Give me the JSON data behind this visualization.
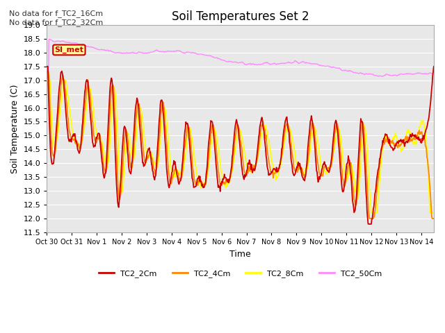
{
  "title": "Soil Temperatures Set 2",
  "xlabel": "Time",
  "ylabel": "Soil Temperature (C)",
  "ylim": [
    11.5,
    19.0
  ],
  "yticks": [
    11.5,
    12.0,
    12.5,
    13.0,
    13.5,
    14.0,
    14.5,
    15.0,
    15.5,
    16.0,
    16.5,
    17.0,
    17.5,
    18.0,
    18.5,
    19.0
  ],
  "x_labels": [
    "Oct 30",
    "Oct 31",
    "Nov 1",
    "Nov 2",
    "Nov 3",
    "Nov 4",
    "Nov 5",
    "Nov 6",
    "Nov 7",
    "Nov 8",
    "Nov 9",
    "Nov 10",
    "Nov 11",
    "Nov 12",
    "Nov 13",
    "Nov 14"
  ],
  "annotation_top": "No data for f_TC2_16Cm\nNo data for f_TC2_32Cm",
  "si_met_label": "SI_met",
  "legend_entries": [
    "TC2_2Cm",
    "TC2_4Cm",
    "TC2_8Cm",
    "TC2_50Cm"
  ],
  "legend_colors": [
    "#cc0000",
    "#ff8800",
    "#ffff00",
    "#ff88ff"
  ],
  "background_color": "#ffffff",
  "plot_bg_color": "#e8e8e8",
  "grid_color": "#ffffff"
}
